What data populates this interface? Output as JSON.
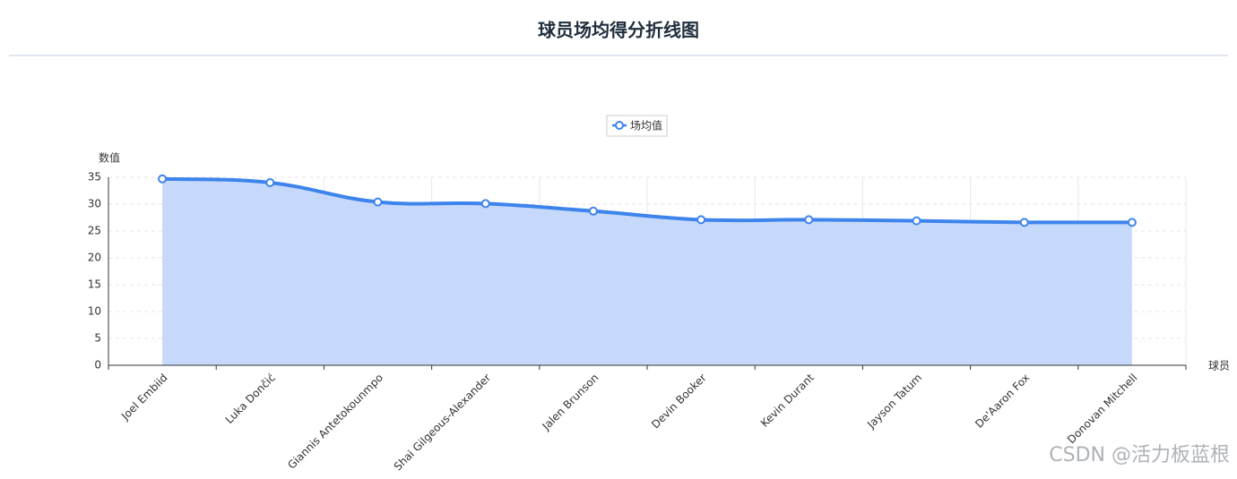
{
  "header": {
    "title": "球员场均得分折线图"
  },
  "watermark": "CSDN @活力板蓝根",
  "chart_data": {
    "type": "line",
    "y_label": "数值",
    "x_label": "球员",
    "categories": [
      "Joel Embiid",
      "Luka Dončić",
      "Giannis Antetokounmpo",
      "Shai Gilgeous-Alexander",
      "Jalen Brunson",
      "Devin Booker",
      "Kevin Durant",
      "Jayson Tatum",
      "De'Aaron Fox",
      "Donovan Mitchell"
    ],
    "series": [
      {
        "name": "场均值",
        "color": "#3d84ec",
        "area_color": "#c6d9fb",
        "values": [
          34.7,
          34.0,
          30.4,
          30.1,
          28.7,
          27.1,
          27.1,
          26.9,
          26.6,
          26.6
        ]
      }
    ],
    "ylim": [
      0,
      35
    ],
    "yticks": [
      0,
      5,
      10,
      15,
      20,
      25,
      30,
      35
    ],
    "grid": true,
    "smooth": true,
    "legend": "top"
  }
}
